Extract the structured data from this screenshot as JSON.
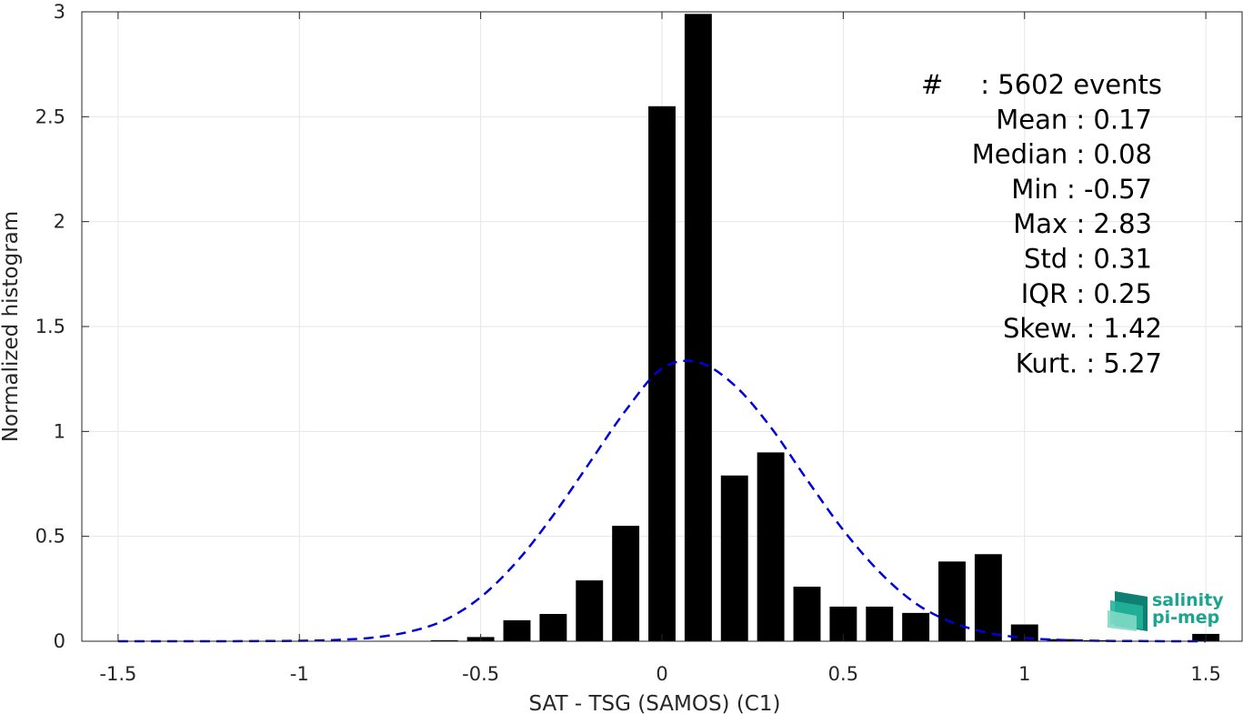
{
  "chart_data": {
    "type": "bar",
    "xlabel": "SAT - TSG (SAMOS) (C1)",
    "ylabel": "Normalized histogram",
    "xlim": [
      -1.6,
      1.6
    ],
    "ylim": [
      0,
      3
    ],
    "xticks": [
      -1.5,
      -1,
      -0.5,
      0,
      0.5,
      1,
      1.5
    ],
    "xtick_labels": [
      "-1.5",
      "-1",
      "-0.5",
      "0",
      "0.5",
      "1",
      "1.5"
    ],
    "yticks": [
      0,
      0.5,
      1,
      1.5,
      2,
      2.5,
      3
    ],
    "ytick_labels": [
      "0",
      "0.5",
      "1",
      "1.5",
      "2",
      "2.5",
      "3"
    ],
    "grid": true,
    "bar_width": 0.075,
    "bars": {
      "x": [
        -0.6,
        -0.5,
        -0.4,
        -0.3,
        -0.2,
        -0.1,
        0.0,
        0.1,
        0.2,
        0.3,
        0.4,
        0.5,
        0.6,
        0.7,
        0.8,
        0.9,
        1.0,
        1.1,
        1.2,
        1.3,
        1.4,
        1.5
      ],
      "values": [
        0.005,
        0.02,
        0.1,
        0.13,
        0.29,
        0.55,
        2.55,
        2.99,
        0.79,
        0.9,
        0.26,
        0.165,
        0.165,
        0.135,
        0.38,
        0.415,
        0.08,
        0.01,
        0.005,
        0.002,
        0.002,
        0.035
      ],
      "color": "#000000"
    },
    "gaussian_fit": {
      "style": "dashed",
      "color": "#0000dd",
      "x": [
        -1.5,
        -1.4,
        -1.3,
        -1.2,
        -1.1,
        -1.0,
        -0.9,
        -0.8,
        -0.7,
        -0.6,
        -0.5,
        -0.4,
        -0.3,
        -0.2,
        -0.1,
        0.0,
        0.1,
        0.2,
        0.3,
        0.4,
        0.5,
        0.6,
        0.7,
        0.8,
        0.9,
        1.0,
        1.1,
        1.2,
        1.3,
        1.4,
        1.5
      ],
      "y": [
        0.0,
        0.0,
        0.0,
        0.0,
        0.001,
        0.002,
        0.006,
        0.017,
        0.044,
        0.1,
        0.21,
        0.38,
        0.6,
        0.85,
        1.1,
        1.3,
        1.33,
        1.22,
        1.02,
        0.77,
        0.53,
        0.33,
        0.18,
        0.09,
        0.04,
        0.016,
        0.006,
        0.002,
        0.001,
        0.0,
        0.0
      ]
    },
    "stats": [
      {
        "label": "#  ",
        "value": "5602 events"
      },
      {
        "label": "Mean",
        "value": "0.17"
      },
      {
        "label": "Median",
        "value": "0.08"
      },
      {
        "label": "Min",
        "value": "-0.57"
      },
      {
        "label": "Max",
        "value": "2.83"
      },
      {
        "label": "Std",
        "value": "0.31"
      },
      {
        "label": "IQR",
        "value": "0.25"
      },
      {
        "label": "Skew.",
        "value": "1.42"
      },
      {
        "label": "Kurt.",
        "value": "5.27"
      }
    ],
    "logo": {
      "line1": "salinity",
      "line2": "pi-mep",
      "color": "#1aa58e"
    }
  }
}
